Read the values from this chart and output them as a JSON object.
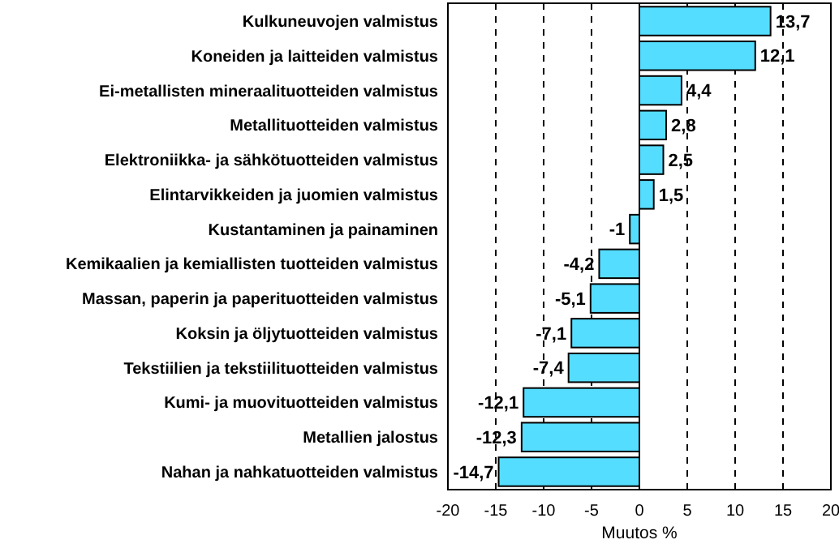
{
  "chart_data": {
    "type": "bar",
    "orientation": "horizontal",
    "xlabel": "Muutos %",
    "categories": [
      "Kulkuneuvojen valmistus",
      "Koneiden ja laitteiden valmistus",
      "Ei-metallisten mineraalituotteiden valmistus",
      "Metallituotteiden valmistus",
      "Elektroniikka- ja sähkötuotteiden valmistus",
      "Elintarvikkeiden ja juomien valmistus",
      "Kustantaminen ja painaminen",
      "Kemikaalien ja kemiallisten tuotteiden valmistus",
      "Massan, paperin ja paperituotteiden valmistus",
      "Koksin ja öljytuotteiden valmistus",
      "Tekstiilien ja tekstiilituotteiden valmistus",
      "Kumi- ja muovituotteiden valmistus",
      "Metallien jalostus",
      "Nahan ja nahkatuotteiden valmistus"
    ],
    "values": [
      13.7,
      12.1,
      4.4,
      2.8,
      2.5,
      1.5,
      -1,
      -4.2,
      -5.1,
      -7.1,
      -7.4,
      -12.1,
      -12.3,
      -14.7
    ],
    "value_labels": [
      "13,7",
      "12,1",
      "4,4",
      "2,8",
      "2,5",
      "1,5",
      "-1",
      "-4,2",
      "-5,1",
      "-7,1",
      "-7,4",
      "-12,1",
      "-12,3",
      "-14,7"
    ],
    "color": "#55ddff",
    "xlim": [
      -20,
      20
    ],
    "xticks": [
      -20,
      -15,
      -10,
      -5,
      0,
      5,
      10,
      15,
      20
    ],
    "grid": "x"
  }
}
